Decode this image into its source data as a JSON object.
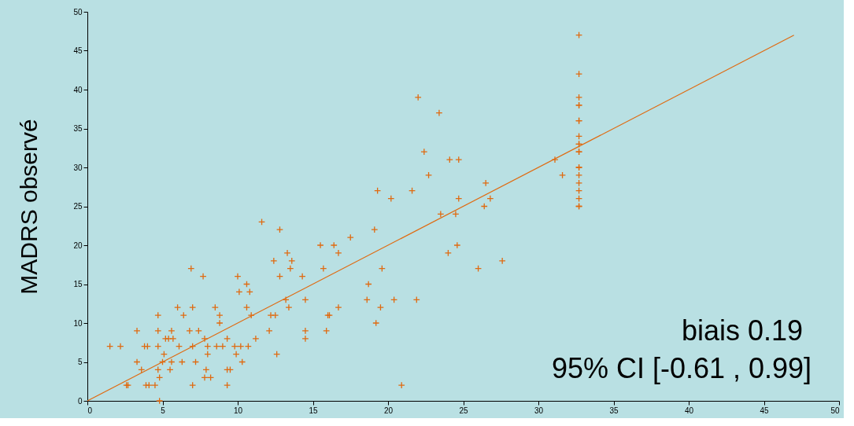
{
  "chart_data": {
    "type": "scatter",
    "ylabel": "MADRS observé",
    "annotations": [
      "biais 0.19",
      "95% CI [-0.61 , 0.99]"
    ],
    "xlim": [
      0,
      50
    ],
    "xticks": [
      0,
      5,
      10,
      15,
      20,
      25,
      30,
      35,
      40,
      45,
      50
    ],
    "ylim": [
      0,
      50
    ],
    "yticks": [
      0,
      5,
      10,
      15,
      20,
      25,
      30,
      35,
      40,
      45,
      50
    ],
    "grid": false,
    "marker": "cross",
    "series": [
      {
        "color": "#e06a10",
        "x": [
          1.5,
          2.2,
          2.6,
          2.7,
          3.3,
          3.3,
          3.6,
          3.8,
          4.0,
          3.9,
          4.1,
          4.5,
          4.7,
          4.7,
          4.7,
          4.7,
          4.8,
          4.8,
          5.0,
          5.1,
          5.2,
          5.4,
          5.5,
          5.6,
          5.6,
          5.7,
          6.0,
          6.1,
          6.3,
          6.4,
          6.8,
          6.9,
          7.0,
          7.0,
          7.0,
          7.2,
          7.4,
          7.7,
          7.8,
          7.9,
          7.8,
          8.0,
          8.0,
          8.2,
          8.5,
          8.6,
          8.8,
          8.8,
          9.0,
          9.3,
          9.3,
          9.3,
          9.5,
          9.8,
          9.9,
          10.0,
          10.1,
          10.2,
          10.3,
          10.6,
          10.6,
          10.7,
          10.8,
          10.9,
          11.2,
          11.6,
          12.1,
          12.2,
          12.4,
          12.5,
          12.6,
          12.8,
          12.8,
          13.2,
          13.3,
          13.4,
          13.5,
          13.6,
          14.3,
          14.5,
          14.5,
          14.5,
          15.5,
          15.7,
          15.9,
          16.0,
          16.1,
          16.4,
          16.7,
          16.7,
          17.5,
          18.6,
          18.7,
          19.1,
          19.2,
          19.3,
          19.5,
          19.6,
          20.2,
          20.4,
          20.9,
          21.6,
          21.9,
          22.0,
          22.4,
          22.7,
          23.4,
          23.5,
          24.0,
          24.1,
          24.5,
          24.6,
          24.7,
          24.7,
          26.0,
          26.4,
          26.5,
          26.8,
          27.6,
          31.1,
          31.6,
          32.7,
          32.7,
          32.7,
          32.7,
          32.7,
          32.7,
          32.7,
          32.7,
          32.7,
          32.7,
          32.7,
          32.7,
          32.7,
          32.7,
          32.7,
          32.7,
          32.7,
          32.7,
          32.7,
          32.7
        ],
        "values": [
          7,
          7,
          2,
          2,
          9,
          5,
          4,
          7,
          7,
          2,
          2,
          2,
          11,
          9,
          7,
          4,
          3,
          0,
          5,
          6,
          8,
          8,
          4,
          5,
          9,
          8,
          12,
          7,
          5,
          11,
          9,
          17,
          12,
          7,
          2,
          5,
          9,
          16,
          8,
          4,
          3,
          6,
          7,
          3,
          12,
          7,
          10,
          11,
          7,
          8,
          4,
          2,
          4,
          7,
          6,
          16,
          14,
          7,
          5,
          12,
          15,
          7,
          14,
          11,
          8,
          23,
          9,
          11,
          18,
          11,
          6,
          22,
          16,
          13,
          19,
          12,
          17,
          18,
          16,
          13,
          9,
          8,
          20,
          17,
          9,
          11,
          11,
          20,
          19,
          12,
          21,
          13,
          15,
          22,
          10,
          27,
          12,
          17,
          26,
          13,
          2,
          27,
          13,
          39,
          32,
          29,
          37,
          24,
          19,
          31,
          24,
          20,
          31,
          26,
          17,
          25,
          28,
          26,
          18,
          31,
          29,
          47,
          42,
          39,
          38,
          38,
          36,
          36,
          34,
          33,
          33,
          32,
          32,
          30,
          30,
          29,
          28,
          27,
          26,
          25,
          25
        ]
      },
      {
        "type": "line",
        "marker": "none",
        "color": "#e06a10",
        "x": [
          0,
          47
        ],
        "values": [
          0,
          47
        ]
      }
    ]
  }
}
